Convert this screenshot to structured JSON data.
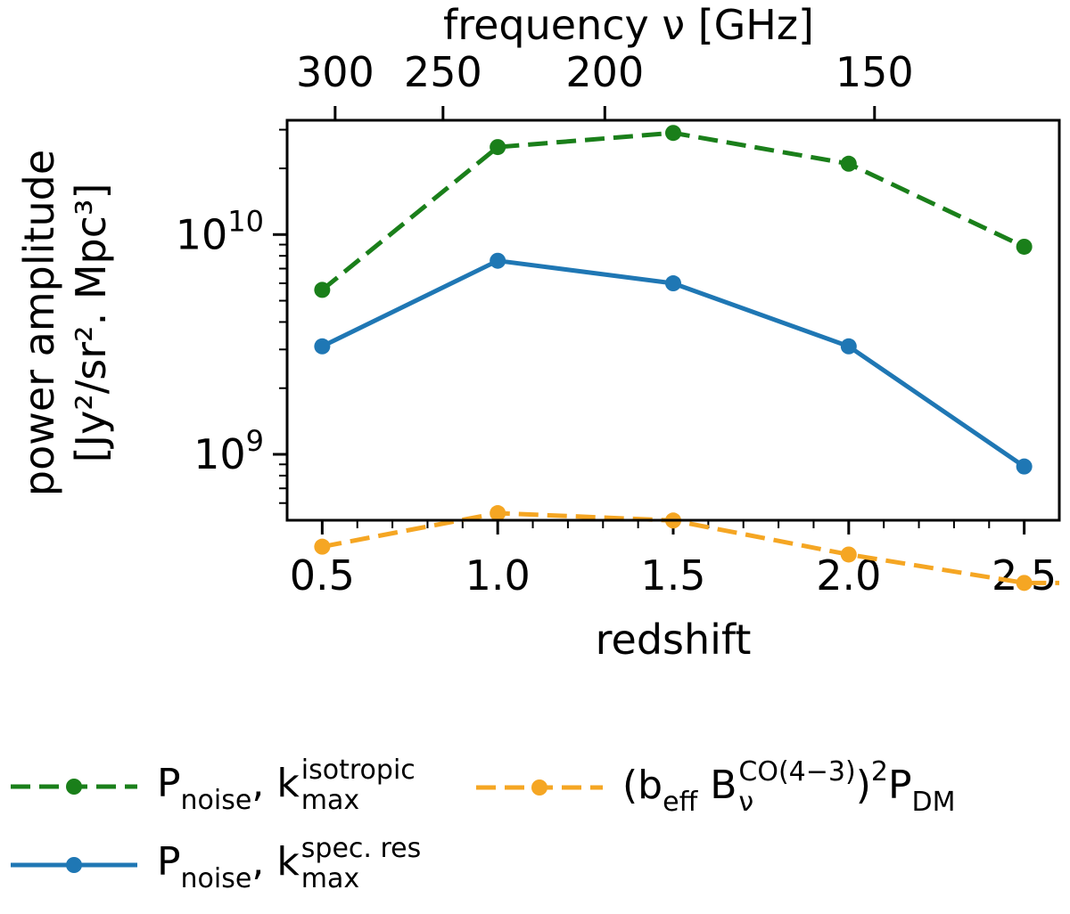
{
  "chart_data": {
    "type": "line",
    "yscale": "log",
    "xlabel": "redshift",
    "ylabel_line1": "power amplitude",
    "ylabel_line2": "[Jy²/sr². Mpc³]",
    "top_xlabel": "frequency ν [GHz]",
    "xlim": [
      0.4,
      2.6
    ],
    "ylim_log10": [
      8.7,
      10.52
    ],
    "x_ticks": [
      0.5,
      1.0,
      1.5,
      2.0,
      2.5
    ],
    "x_tick_labels": [
      "0.5",
      "1.0",
      "1.5",
      "2.0",
      "2.5"
    ],
    "x_minor_ticks": [
      0.6,
      0.7,
      0.8,
      0.9,
      1.1,
      1.2,
      1.3,
      1.4,
      1.6,
      1.7,
      1.8,
      1.9,
      2.1,
      2.2,
      2.3,
      2.4
    ],
    "y_major_ticks_log10": [
      9,
      10
    ],
    "y_tick_base": "10",
    "y_tick_exponents": [
      "9",
      "10"
    ],
    "top_ticks_ghz": [
      300,
      250,
      200,
      150
    ],
    "top_tick_labels": [
      "300",
      "250",
      "200",
      "150"
    ],
    "top_axis_rest_freq_ghz": 461.04,
    "x": [
      0.5,
      1.0,
      1.5,
      2.0,
      2.5
    ],
    "series": [
      {
        "name": "P_noise, k_max isotropic",
        "color": "#1a7f1a",
        "dashed": true,
        "values": [
          5600000000.0,
          25000000000.0,
          29000000000.0,
          21000000000.0,
          8800000000.0
        ]
      },
      {
        "name": "P_noise, k_max spec. res",
        "color": "#1f77b4",
        "dashed": false,
        "values": [
          3100000000.0,
          7600000000.0,
          6000000000.0,
          3100000000.0,
          880000000.0
        ]
      },
      {
        "name": "(b_eff B_nu CO(4-3))^2 P_DM",
        "color": "#f5a623",
        "dashed": true,
        "values": [
          380000000.0,
          540000000.0,
          500000000.0,
          350000000.0,
          260000000.0,
          260000000.0
        ],
        "x": [
          0.5,
          1.0,
          1.5,
          2.0,
          2.5,
          2.6
        ],
        "markers": [
          true,
          true,
          true,
          true,
          true,
          false
        ]
      }
    ]
  },
  "legend": {
    "green": {
      "main": "P",
      "sub1": "noise",
      "sep": ", k",
      "sup": "isotropic",
      "sub2": "max"
    },
    "blue": {
      "main": "P",
      "sub1": "noise",
      "sep": ", k",
      "sup": "spec. res",
      "sub2": "max"
    },
    "orange": {
      "open": "(b",
      "sub1": "eff",
      "mid": " B",
      "sup": "CO(4−3)",
      "sub2": "ν",
      "close": ")",
      "pow": "2",
      "end": "P",
      "sub3": "DM"
    }
  }
}
